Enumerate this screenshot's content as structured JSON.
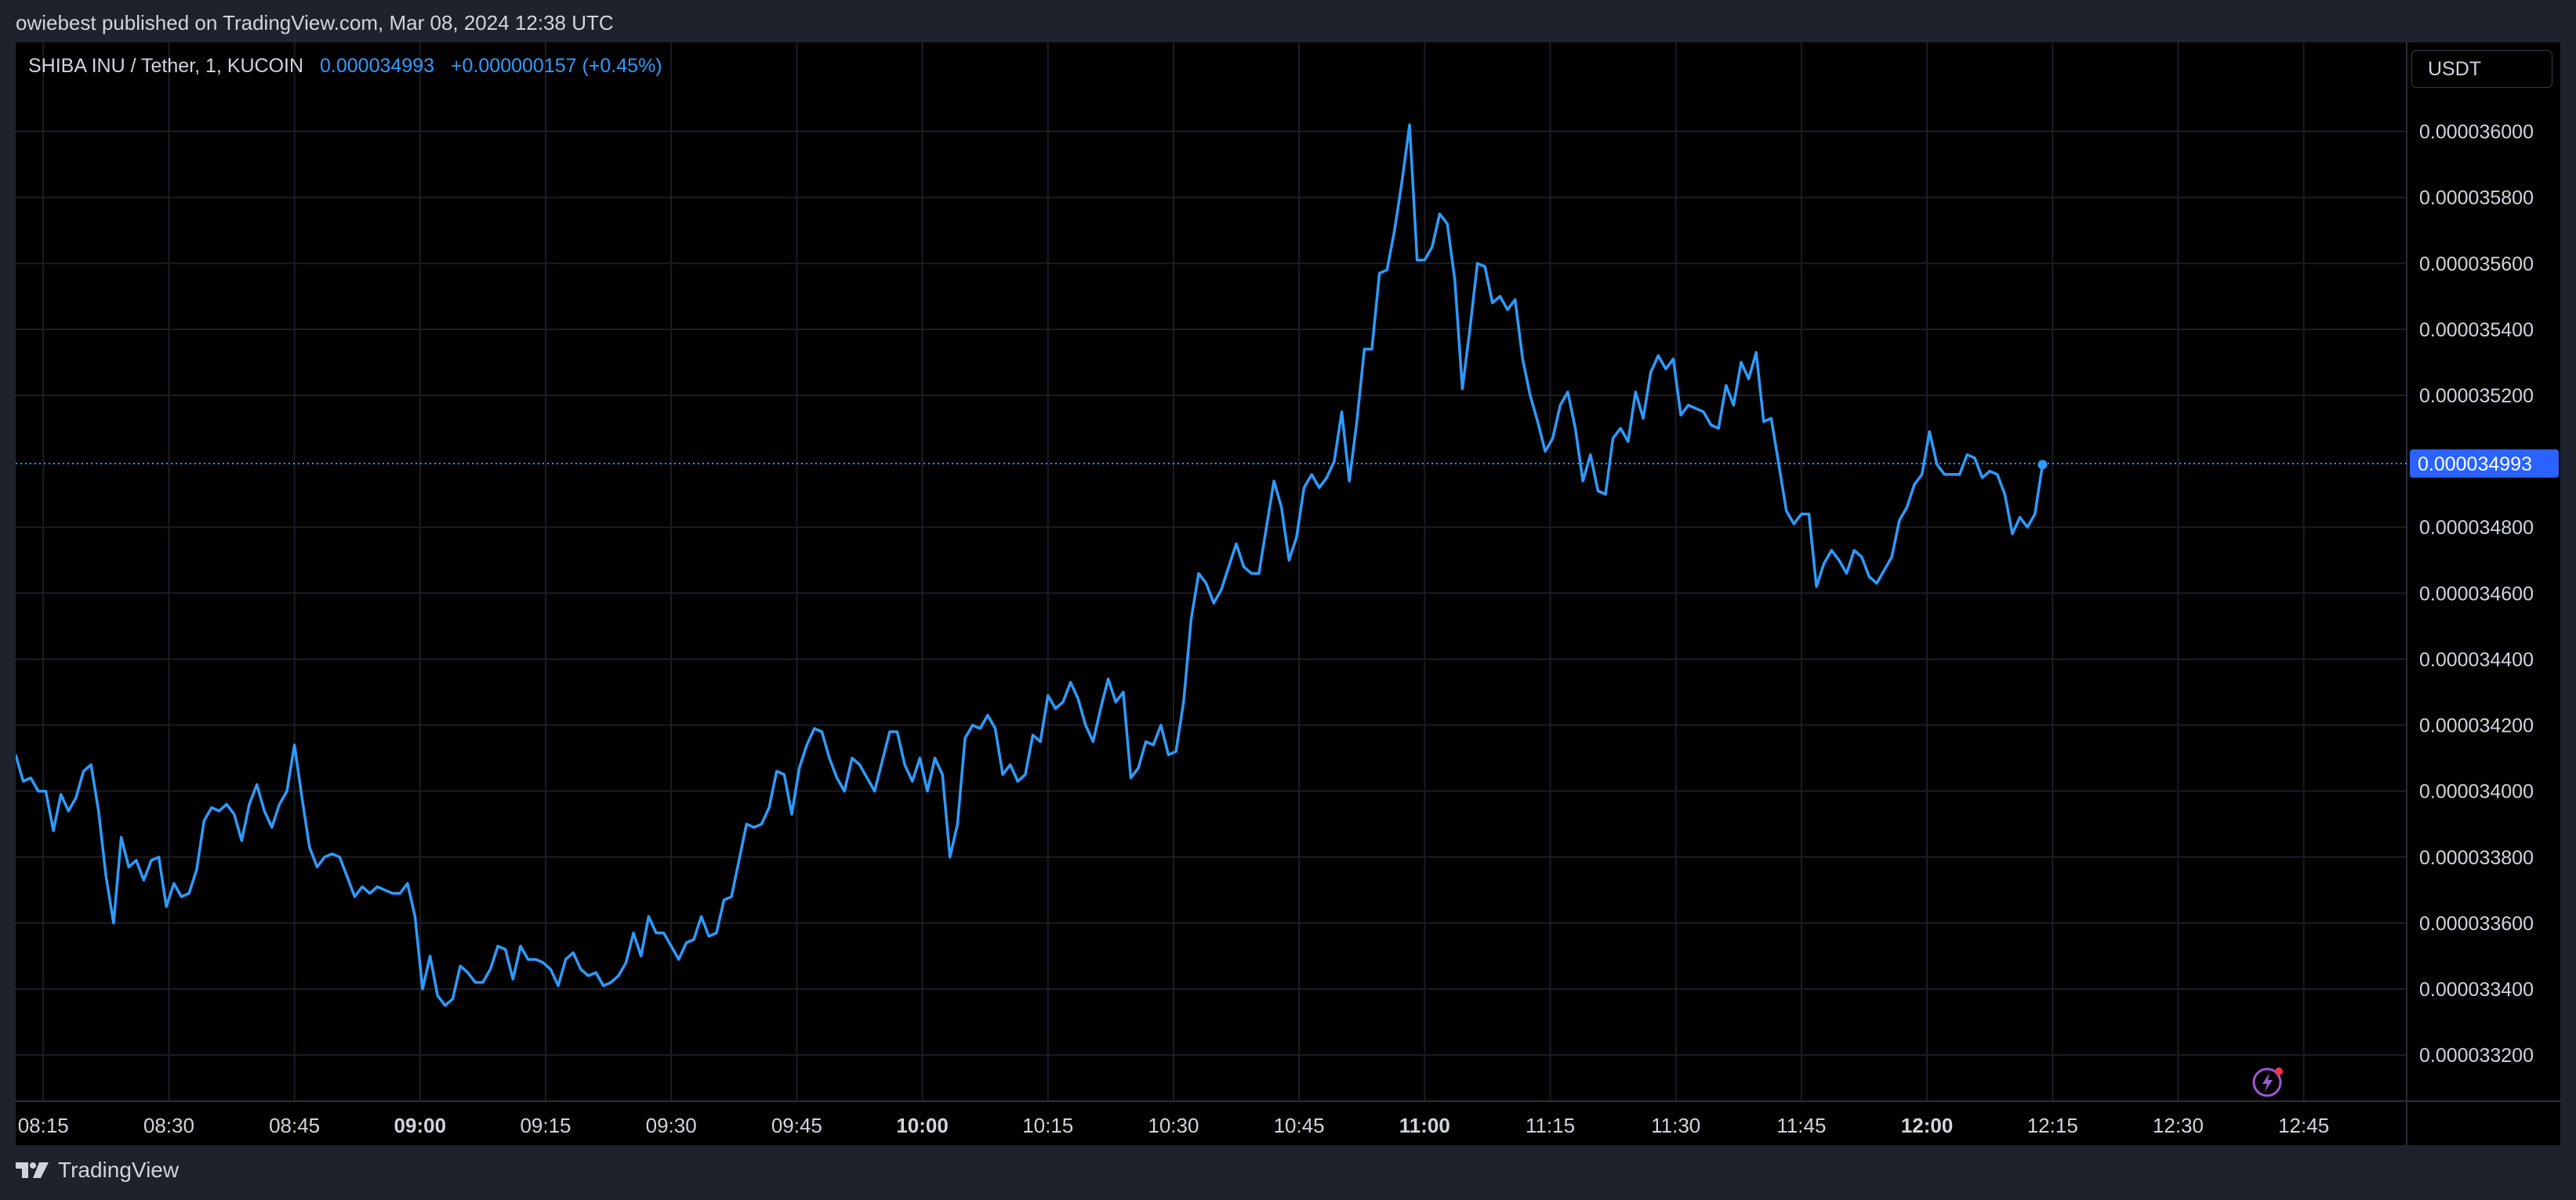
{
  "header": {
    "published_text": "owiebest published on TradingView.com, Mar 08, 2024 12:38 UTC"
  },
  "legend": {
    "symbol": "SHIBA INU / Tether, 1, KUCOIN",
    "price": "0.000034993",
    "change": "+0.000000157 (+0.45%)"
  },
  "currency_button": "USDT",
  "footer": {
    "brand": "TradingView"
  },
  "icons": {
    "logo": "tradingview-logo-icon",
    "bolt": "lightning-bolt-icon"
  },
  "colors": {
    "line": "#2e9bff",
    "background": "#000000",
    "grid": "#1b1d24",
    "price_tag": "#2962ff",
    "bolt": "#9c59d6",
    "bolt_dot": "#f23645"
  },
  "chart_data": {
    "type": "line",
    "x_ticks": [
      {
        "label": "08:15",
        "t": 0.25,
        "bold": false
      },
      {
        "label": "08:30",
        "t": 0.5,
        "bold": false
      },
      {
        "label": "08:45",
        "t": 0.75,
        "bold": false
      },
      {
        "label": "09:00",
        "t": 1.0,
        "bold": true
      },
      {
        "label": "09:15",
        "t": 1.25,
        "bold": false
      },
      {
        "label": "09:30",
        "t": 1.5,
        "bold": false
      },
      {
        "label": "09:45",
        "t": 1.75,
        "bold": false
      },
      {
        "label": "10:00",
        "t": 2.0,
        "bold": true
      },
      {
        "label": "10:15",
        "t": 2.25,
        "bold": false
      },
      {
        "label": "10:30",
        "t": 2.5,
        "bold": false
      },
      {
        "label": "10:45",
        "t": 2.75,
        "bold": false
      },
      {
        "label": "11:00",
        "t": 3.0,
        "bold": true
      },
      {
        "label": "11:15",
        "t": 3.25,
        "bold": false
      },
      {
        "label": "11:30",
        "t": 3.5,
        "bold": false
      },
      {
        "label": "11:45",
        "t": 3.75,
        "bold": false
      },
      {
        "label": "12:00",
        "t": 4.0,
        "bold": true
      },
      {
        "label": "12:15",
        "t": 4.25,
        "bold": false
      },
      {
        "label": "12:30",
        "t": 4.5,
        "bold": false
      },
      {
        "label": "12:45",
        "t": 4.75,
        "bold": false
      }
    ],
    "y_ticks": [
      "0.000033200",
      "0.000033400",
      "0.000033600",
      "0.000033800",
      "0.000034000",
      "0.000034200",
      "0.000034400",
      "0.000034600",
      "0.000034800",
      "0.000035200",
      "0.000035400",
      "0.000035600",
      "0.000035800",
      "0.000036000"
    ],
    "y_tick_values": [
      33.2,
      33.4,
      33.6,
      33.8,
      34.0,
      34.2,
      34.4,
      34.6,
      34.8,
      35.2,
      35.4,
      35.6,
      35.8,
      36.0
    ],
    "ylim": [
      33.06,
      36.27
    ],
    "xlim": [
      0.195,
      4.955
    ],
    "y_unit_scale": 1e-06,
    "current_price": 34.993,
    "current_price_label": "0.000034993",
    "series": [
      {
        "values": [
          [
            0.195,
            34.11
          ],
          [
            0.21,
            34.03
          ],
          [
            0.225,
            34.04
          ],
          [
            0.24,
            34.0
          ],
          [
            0.255,
            34.0
          ],
          [
            0.27,
            33.88
          ],
          [
            0.285,
            33.99
          ],
          [
            0.3,
            33.94
          ],
          [
            0.315,
            33.98
          ],
          [
            0.33,
            34.06
          ],
          [
            0.345,
            34.08
          ],
          [
            0.36,
            33.94
          ],
          [
            0.375,
            33.74
          ],
          [
            0.39,
            33.6
          ],
          [
            0.405,
            33.86
          ],
          [
            0.42,
            33.77
          ],
          [
            0.435,
            33.79
          ],
          [
            0.45,
            33.73
          ],
          [
            0.465,
            33.79
          ],
          [
            0.48,
            33.8
          ],
          [
            0.495,
            33.65
          ],
          [
            0.51,
            33.72
          ],
          [
            0.525,
            33.68
          ],
          [
            0.54,
            33.69
          ],
          [
            0.555,
            33.76
          ],
          [
            0.57,
            33.91
          ],
          [
            0.585,
            33.95
          ],
          [
            0.6,
            33.94
          ],
          [
            0.615,
            33.96
          ],
          [
            0.63,
            33.93
          ],
          [
            0.645,
            33.85
          ],
          [
            0.66,
            33.96
          ],
          [
            0.675,
            34.02
          ],
          [
            0.69,
            33.94
          ],
          [
            0.705,
            33.89
          ],
          [
            0.72,
            33.96
          ],
          [
            0.735,
            34.0
          ],
          [
            0.75,
            34.14
          ],
          [
            0.765,
            33.98
          ],
          [
            0.78,
            33.83
          ],
          [
            0.795,
            33.77
          ],
          [
            0.81,
            33.8
          ],
          [
            0.825,
            33.81
          ],
          [
            0.84,
            33.8
          ],
          [
            0.855,
            33.74
          ],
          [
            0.87,
            33.68
          ],
          [
            0.885,
            33.71
          ],
          [
            0.9,
            33.69
          ],
          [
            0.915,
            33.71
          ],
          [
            0.93,
            33.7
          ],
          [
            0.945,
            33.69
          ],
          [
            0.96,
            33.69
          ],
          [
            0.975,
            33.72
          ],
          [
            0.99,
            33.62
          ],
          [
            1.005,
            33.4
          ],
          [
            1.02,
            33.5
          ],
          [
            1.035,
            33.38
          ],
          [
            1.05,
            33.35
          ],
          [
            1.065,
            33.37
          ],
          [
            1.08,
            33.47
          ],
          [
            1.095,
            33.45
          ],
          [
            1.11,
            33.42
          ],
          [
            1.125,
            33.42
          ],
          [
            1.14,
            33.46
          ],
          [
            1.155,
            33.53
          ],
          [
            1.17,
            33.52
          ],
          [
            1.185,
            33.43
          ],
          [
            1.2,
            33.53
          ],
          [
            1.215,
            33.49
          ],
          [
            1.23,
            33.49
          ],
          [
            1.245,
            33.48
          ],
          [
            1.26,
            33.46
          ],
          [
            1.275,
            33.41
          ],
          [
            1.29,
            33.49
          ],
          [
            1.305,
            33.51
          ],
          [
            1.32,
            33.46
          ],
          [
            1.335,
            33.44
          ],
          [
            1.35,
            33.45
          ],
          [
            1.365,
            33.41
          ],
          [
            1.38,
            33.42
          ],
          [
            1.395,
            33.44
          ],
          [
            1.41,
            33.48
          ],
          [
            1.425,
            33.57
          ],
          [
            1.44,
            33.5
          ],
          [
            1.455,
            33.62
          ],
          [
            1.47,
            33.57
          ],
          [
            1.485,
            33.57
          ],
          [
            1.5,
            33.53
          ],
          [
            1.515,
            33.49
          ],
          [
            1.53,
            33.54
          ],
          [
            1.545,
            33.55
          ],
          [
            1.56,
            33.62
          ],
          [
            1.575,
            33.56
          ],
          [
            1.59,
            33.57
          ],
          [
            1.605,
            33.67
          ],
          [
            1.62,
            33.68
          ],
          [
            1.635,
            33.79
          ],
          [
            1.65,
            33.9
          ],
          [
            1.665,
            33.89
          ],
          [
            1.68,
            33.9
          ],
          [
            1.695,
            33.95
          ],
          [
            1.71,
            34.06
          ],
          [
            1.725,
            34.05
          ],
          [
            1.74,
            33.93
          ],
          [
            1.755,
            34.07
          ],
          [
            1.77,
            34.14
          ],
          [
            1.785,
            34.19
          ],
          [
            1.8,
            34.18
          ],
          [
            1.815,
            34.1
          ],
          [
            1.83,
            34.04
          ],
          [
            1.845,
            34.0
          ],
          [
            1.86,
            34.1
          ],
          [
            1.875,
            34.08
          ],
          [
            1.89,
            34.04
          ],
          [
            1.905,
            34.0
          ],
          [
            1.92,
            34.09
          ],
          [
            1.935,
            34.18
          ],
          [
            1.95,
            34.18
          ],
          [
            1.965,
            34.08
          ],
          [
            1.98,
            34.03
          ],
          [
            1.995,
            34.1
          ],
          [
            2.01,
            34.0
          ],
          [
            2.025,
            34.1
          ],
          [
            2.04,
            34.05
          ],
          [
            2.055,
            33.8
          ],
          [
            2.07,
            33.9
          ],
          [
            2.085,
            34.16
          ],
          [
            2.1,
            34.2
          ],
          [
            2.115,
            34.19
          ],
          [
            2.13,
            34.23
          ],
          [
            2.145,
            34.19
          ],
          [
            2.16,
            34.05
          ],
          [
            2.175,
            34.08
          ],
          [
            2.19,
            34.03
          ],
          [
            2.205,
            34.05
          ],
          [
            2.22,
            34.17
          ],
          [
            2.235,
            34.15
          ],
          [
            2.25,
            34.29
          ],
          [
            2.265,
            34.25
          ],
          [
            2.28,
            34.27
          ],
          [
            2.295,
            34.33
          ],
          [
            2.31,
            34.28
          ],
          [
            2.325,
            34.2
          ],
          [
            2.34,
            34.15
          ],
          [
            2.355,
            34.25
          ],
          [
            2.37,
            34.34
          ],
          [
            2.385,
            34.27
          ],
          [
            2.4,
            34.3
          ],
          [
            2.415,
            34.04
          ],
          [
            2.43,
            34.07
          ],
          [
            2.445,
            34.15
          ],
          [
            2.46,
            34.14
          ],
          [
            2.475,
            34.2
          ],
          [
            2.49,
            34.11
          ],
          [
            2.505,
            34.12
          ],
          [
            2.52,
            34.27
          ],
          [
            2.535,
            34.52
          ],
          [
            2.55,
            34.66
          ],
          [
            2.565,
            34.63
          ],
          [
            2.58,
            34.57
          ],
          [
            2.595,
            34.61
          ],
          [
            2.61,
            34.68
          ],
          [
            2.625,
            34.75
          ],
          [
            2.64,
            34.68
          ],
          [
            2.655,
            34.66
          ],
          [
            2.67,
            34.66
          ],
          [
            2.685,
            34.8
          ],
          [
            2.7,
            34.94
          ],
          [
            2.715,
            34.86
          ],
          [
            2.73,
            34.7
          ],
          [
            2.745,
            34.77
          ],
          [
            2.76,
            34.92
          ],
          [
            2.775,
            34.96
          ],
          [
            2.79,
            34.92
          ],
          [
            2.805,
            34.95
          ],
          [
            2.82,
            35.0
          ],
          [
            2.835,
            35.15
          ],
          [
            2.85,
            34.94
          ],
          [
            2.865,
            35.12
          ],
          [
            2.88,
            35.34
          ],
          [
            2.895,
            35.34
          ],
          [
            2.91,
            35.57
          ],
          [
            2.925,
            35.58
          ],
          [
            2.94,
            35.7
          ],
          [
            2.955,
            35.85
          ],
          [
            2.97,
            36.02
          ],
          [
            2.985,
            35.61
          ],
          [
            3.0,
            35.61
          ],
          [
            3.015,
            35.65
          ],
          [
            3.03,
            35.75
          ],
          [
            3.045,
            35.72
          ],
          [
            3.06,
            35.55
          ],
          [
            3.075,
            35.22
          ],
          [
            3.09,
            35.4
          ],
          [
            3.105,
            35.6
          ],
          [
            3.12,
            35.59
          ],
          [
            3.135,
            35.48
          ],
          [
            3.15,
            35.5
          ],
          [
            3.165,
            35.46
          ],
          [
            3.18,
            35.49
          ],
          [
            3.195,
            35.31
          ],
          [
            3.21,
            35.2
          ],
          [
            3.225,
            35.12
          ],
          [
            3.24,
            35.03
          ],
          [
            3.255,
            35.07
          ],
          [
            3.27,
            35.17
          ],
          [
            3.285,
            35.21
          ],
          [
            3.3,
            35.1
          ],
          [
            3.315,
            34.94
          ],
          [
            3.33,
            35.02
          ],
          [
            3.345,
            34.91
          ],
          [
            3.36,
            34.9
          ],
          [
            3.375,
            35.07
          ],
          [
            3.39,
            35.1
          ],
          [
            3.405,
            35.06
          ],
          [
            3.42,
            35.21
          ],
          [
            3.435,
            35.13
          ],
          [
            3.45,
            35.27
          ],
          [
            3.465,
            35.32
          ],
          [
            3.48,
            35.28
          ],
          [
            3.495,
            35.31
          ],
          [
            3.51,
            35.14
          ],
          [
            3.525,
            35.17
          ],
          [
            3.54,
            35.16
          ],
          [
            3.555,
            35.15
          ],
          [
            3.57,
            35.11
          ],
          [
            3.585,
            35.1
          ],
          [
            3.6,
            35.23
          ],
          [
            3.615,
            35.17
          ],
          [
            3.63,
            35.3
          ],
          [
            3.645,
            35.25
          ],
          [
            3.66,
            35.33
          ],
          [
            3.675,
            35.12
          ],
          [
            3.69,
            35.13
          ],
          [
            3.705,
            34.99
          ],
          [
            3.72,
            34.85
          ],
          [
            3.735,
            34.81
          ],
          [
            3.75,
            34.84
          ],
          [
            3.765,
            34.84
          ],
          [
            3.78,
            34.62
          ],
          [
            3.795,
            34.69
          ],
          [
            3.81,
            34.73
          ],
          [
            3.825,
            34.7
          ],
          [
            3.84,
            34.66
          ],
          [
            3.855,
            34.73
          ],
          [
            3.87,
            34.71
          ],
          [
            3.885,
            34.65
          ],
          [
            3.9,
            34.63
          ],
          [
            3.915,
            34.67
          ],
          [
            3.93,
            34.71
          ],
          [
            3.945,
            34.82
          ],
          [
            3.96,
            34.86
          ],
          [
            3.975,
            34.93
          ],
          [
            3.99,
            34.96
          ],
          [
            4.005,
            35.09
          ],
          [
            4.02,
            34.99
          ],
          [
            4.035,
            34.96
          ],
          [
            4.05,
            34.96
          ],
          [
            4.065,
            34.96
          ],
          [
            4.08,
            35.02
          ],
          [
            4.095,
            35.01
          ],
          [
            4.11,
            34.95
          ],
          [
            4.125,
            34.97
          ],
          [
            4.14,
            34.96
          ],
          [
            4.155,
            34.9
          ],
          [
            4.17,
            34.78
          ],
          [
            4.185,
            34.83
          ],
          [
            4.2,
            34.8
          ],
          [
            4.215,
            34.84
          ],
          [
            4.23,
            34.99
          ]
        ]
      }
    ]
  }
}
